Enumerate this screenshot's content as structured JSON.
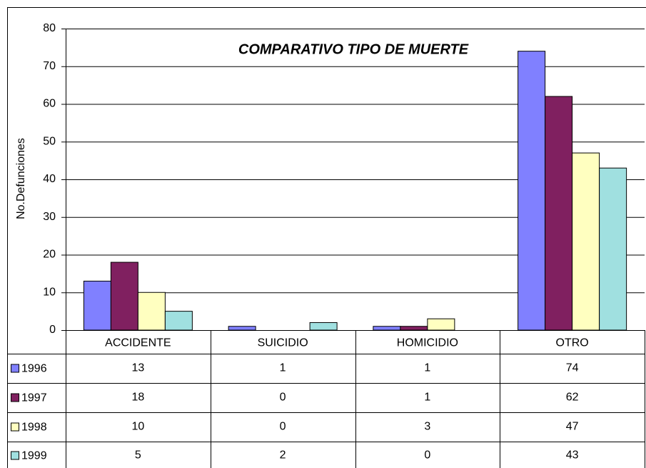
{
  "chart_data": {
    "type": "bar",
    "title": "COMPARATIVO TIPO DE MUERTE",
    "y_label": "No.Defunciones",
    "categories": [
      "ACCIDENTE",
      "SUICIDIO",
      "HOMICIDIO",
      "OTRO"
    ],
    "series": [
      {
        "name": "1996",
        "color": "#8080ff",
        "values": [
          13,
          1,
          1,
          74
        ]
      },
      {
        "name": "1997",
        "color": "#802060",
        "values": [
          18,
          0,
          1,
          62
        ]
      },
      {
        "name": "1998",
        "color": "#ffffc0",
        "values": [
          10,
          0,
          3,
          47
        ]
      },
      {
        "name": "1999",
        "color": "#a0e0e0",
        "values": [
          5,
          2,
          0,
          43
        ]
      }
    ],
    "ylim": [
      0,
      80
    ],
    "yticks": [
      0,
      10,
      20,
      30,
      40,
      50,
      60,
      70,
      80
    ],
    "grid": true
  }
}
